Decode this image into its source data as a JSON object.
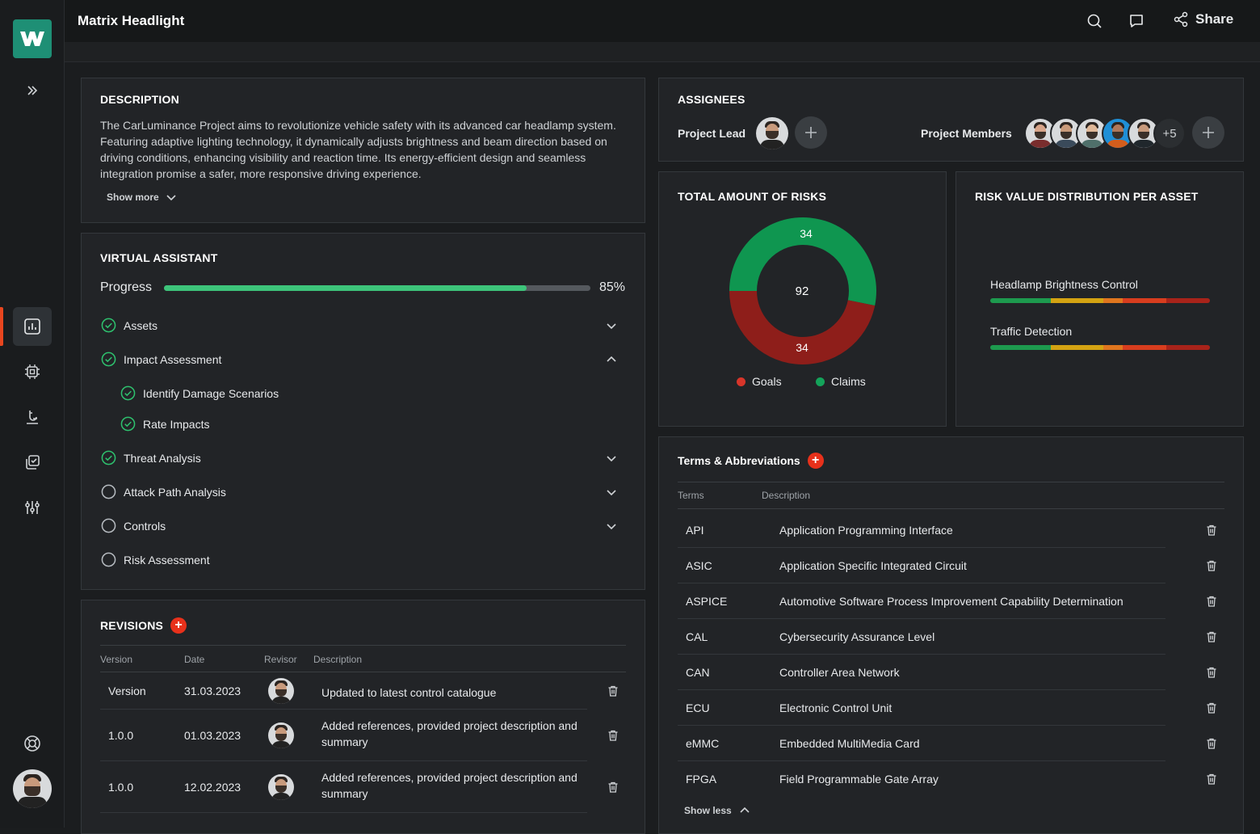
{
  "app": {
    "title": "Matrix Headlight",
    "share_label": "Share"
  },
  "description": {
    "heading": "DESCRIPTION",
    "text": "The CarLuminance Project aims to revolutionize vehicle safety with its advanced car headlamp system. Featuring adaptive lighting technology, it dynamically adjusts brightness and beam direction based on driving conditions, enhancing visibility and reaction time. Its energy-efficient design and seamless integration promise a safer, more responsive driving experience.",
    "show_more": "Show more"
  },
  "assistant": {
    "heading": "VIRTUAL ASSISTANT",
    "progress_label": "Progress",
    "progress_value": 0.85,
    "progress_text": "85%",
    "steps": [
      {
        "label": "Assets",
        "done": true,
        "expand": "down"
      },
      {
        "label": "Impact Assessment",
        "done": true,
        "expand": "up"
      },
      {
        "label": "Identify Damage Scenarios",
        "done": true,
        "expand": "none"
      },
      {
        "label": "Rate Impacts",
        "done": true,
        "expand": "none"
      },
      {
        "label": "Threat Analysis",
        "done": true,
        "expand": "down"
      },
      {
        "label": "Attack Path Analysis",
        "done": false,
        "expand": "down"
      },
      {
        "label": "Controls",
        "done": false,
        "expand": "down"
      },
      {
        "label": "Risk Assessment",
        "done": false,
        "expand": "none"
      }
    ]
  },
  "revisions": {
    "heading": "REVISIONS",
    "columns": [
      "Version",
      "Date",
      "Revisor",
      "Description"
    ],
    "rows": [
      {
        "version": "Version",
        "date": "31.03.2023",
        "description": "Updated to latest control catalogue"
      },
      {
        "version": "1.0.0",
        "date": "01.03.2023",
        "description": "Added references, provided project description and summary"
      },
      {
        "version": "1.0.0",
        "date": "12.02.2023",
        "description": "Added references, provided project description and summary"
      }
    ]
  },
  "assignees": {
    "heading": "ASSIGNEES",
    "lead_label": "Project Lead",
    "members_label": "Project Members",
    "extra_members": "+5"
  },
  "risks": {
    "heading": "TOTAL AMOUNT OF RISKS",
    "total": "92",
    "claims_value": "34",
    "goals_value": "34",
    "legend_goals": "Goals",
    "legend_claims": "Claims",
    "colors": {
      "goals": "#8e1e1a",
      "claims": "#0f9650"
    }
  },
  "chart_data": {
    "type": "pie",
    "title": "TOTAL AMOUNT OF RISKS",
    "categories": [
      "Claims",
      "Goals"
    ],
    "values": [
      34,
      34
    ],
    "center_label": "92"
  },
  "distribution": {
    "heading": "RISK VALUE DISTRIBUTION PER ASSET",
    "assets": [
      {
        "label": "Headlamp Brightness Control"
      },
      {
        "label": "Traffic Detection"
      }
    ]
  },
  "terms": {
    "heading": "Terms & Abbreviations",
    "columns": [
      "Terms",
      "Description"
    ],
    "rows": [
      {
        "term": "API",
        "description": "Application Programming Interface"
      },
      {
        "term": "ASIC",
        "description": "Application Specific Integrated Circuit"
      },
      {
        "term": "ASPICE",
        "description": "Automotive Software Process Improvement Capability Determination"
      },
      {
        "term": "CAL",
        "description": "Cybersecurity Assurance Level"
      },
      {
        "term": "CAN",
        "description": "Controller Area Network"
      },
      {
        "term": "ECU",
        "description": "Electronic Control Unit"
      },
      {
        "term": "eMMC",
        "description": "Embedded MultiMedia Card"
      },
      {
        "term": "FPGA",
        "description": "Field Programmable Gate Array"
      }
    ],
    "show_less": "Show less"
  }
}
